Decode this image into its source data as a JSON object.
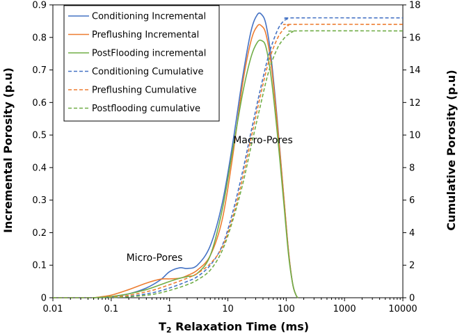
{
  "chart_data": {
    "type": "line",
    "x_scale": "log",
    "xlabel": "T2 Relaxation Time (ms)",
    "xlabel_main": "T",
    "xlabel_sub": "2",
    "xlabel_rest": " Relaxation Time (ms)",
    "ylabel_left": "Incremental Porosity (p.u)",
    "ylabel_right": "Cumulative Porosity (p.u)",
    "xlim": [
      0.01,
      10000
    ],
    "ylim_left": [
      0,
      0.9
    ],
    "ylim_right": [
      0,
      18
    ],
    "x_ticks": [
      "0.01",
      "0.1",
      "1",
      "10",
      "100",
      "1000",
      "10000"
    ],
    "y_left_ticks": [
      "0",
      "0.1",
      "0.2",
      "0.3",
      "0.4",
      "0.5",
      "0.6",
      "0.7",
      "0.8",
      "0.9"
    ],
    "y_right_ticks": [
      "0",
      "2",
      "4",
      "6",
      "8",
      "10",
      "12",
      "14",
      "16",
      "18"
    ],
    "legend_position": "top-left",
    "annotations": [
      {
        "text": "Micro-Pores",
        "x": 1.5,
        "y": 0.155
      },
      {
        "text": "Macro-Pores",
        "x": 40,
        "y": 0.615
      }
    ],
    "series": [
      {
        "name": "Conditioning Incremental",
        "axis": "left",
        "style": "solid",
        "color": "#4472c4",
        "x": [
          0.05,
          0.1,
          0.2,
          0.4,
          0.7,
          1.0,
          1.5,
          2.0,
          3.0,
          5.0,
          8.0,
          12,
          18,
          25,
          32,
          38,
          45,
          55,
          70,
          90,
          110,
          130,
          150,
          160
        ],
        "y": [
          0,
          0.003,
          0.012,
          0.03,
          0.055,
          0.08,
          0.092,
          0.09,
          0.1,
          0.16,
          0.29,
          0.47,
          0.68,
          0.82,
          0.87,
          0.87,
          0.84,
          0.74,
          0.55,
          0.32,
          0.14,
          0.04,
          0.005,
          0
        ]
      },
      {
        "name": "Preflushing Incremental",
        "axis": "left",
        "style": "solid",
        "color": "#ed7d31",
        "x": [
          0.05,
          0.1,
          0.2,
          0.4,
          0.7,
          1.0,
          1.5,
          2.0,
          3.0,
          5.0,
          8.0,
          12,
          18,
          25,
          32,
          38,
          45,
          55,
          70,
          90,
          110,
          130,
          150,
          160
        ],
        "y": [
          0,
          0.008,
          0.025,
          0.045,
          0.057,
          0.058,
          0.06,
          0.068,
          0.085,
          0.13,
          0.24,
          0.43,
          0.66,
          0.79,
          0.835,
          0.835,
          0.81,
          0.72,
          0.54,
          0.32,
          0.14,
          0.04,
          0.005,
          0
        ]
      },
      {
        "name": "PostFlooding incremental",
        "axis": "left",
        "style": "solid",
        "color": "#70ad47",
        "x": [
          0.05,
          0.1,
          0.2,
          0.4,
          0.7,
          1.0,
          1.5,
          2.0,
          3.0,
          5.0,
          8.0,
          12,
          18,
          25,
          32,
          38,
          45,
          55,
          70,
          90,
          110,
          130,
          150,
          160
        ],
        "y": [
          0,
          0.004,
          0.012,
          0.025,
          0.04,
          0.05,
          0.06,
          0.065,
          0.075,
          0.13,
          0.27,
          0.45,
          0.63,
          0.74,
          0.785,
          0.79,
          0.77,
          0.68,
          0.51,
          0.3,
          0.13,
          0.04,
          0.005,
          0
        ]
      },
      {
        "name": "Conditioning Cumulative",
        "axis": "right",
        "style": "dashed",
        "color": "#4472c4",
        "x": [
          0.01,
          0.05,
          0.1,
          0.2,
          0.5,
          1.0,
          2.0,
          3.0,
          5.0,
          8.0,
          12,
          18,
          25,
          35,
          50,
          70,
          90,
          110,
          130,
          10000
        ],
        "y": [
          0,
          0,
          0.02,
          0.08,
          0.3,
          0.6,
          1.0,
          1.3,
          2.0,
          3.2,
          5.2,
          7.8,
          10.2,
          12.6,
          14.9,
          16.4,
          17.0,
          17.15,
          17.2,
          17.2
        ]
      },
      {
        "name": "Preflushing Cumulative",
        "axis": "right",
        "style": "dashed",
        "color": "#ed7d31",
        "x": [
          0.01,
          0.05,
          0.1,
          0.2,
          0.5,
          1.0,
          2.0,
          3.0,
          5.0,
          8.0,
          12,
          18,
          25,
          35,
          50,
          70,
          90,
          110,
          130,
          10000
        ],
        "y": [
          0,
          0,
          0.05,
          0.15,
          0.45,
          0.8,
          1.2,
          1.5,
          2.1,
          3.1,
          4.9,
          7.4,
          9.8,
          12.2,
          14.5,
          15.9,
          16.5,
          16.75,
          16.8,
          16.8
        ]
      },
      {
        "name": "Postflooding cumulative",
        "axis": "right",
        "style": "dashed",
        "color": "#70ad47",
        "x": [
          0.01,
          0.05,
          0.1,
          0.2,
          0.5,
          1.0,
          2.0,
          3.0,
          5.0,
          8.0,
          12,
          18,
          25,
          35,
          50,
          70,
          90,
          110,
          130,
          160,
          10000
        ],
        "y": [
          0,
          0,
          0.02,
          0.06,
          0.2,
          0.45,
          0.8,
          1.1,
          1.7,
          2.9,
          4.7,
          7.0,
          9.3,
          11.6,
          13.9,
          15.3,
          15.9,
          16.2,
          16.35,
          16.4,
          16.4
        ]
      }
    ]
  }
}
